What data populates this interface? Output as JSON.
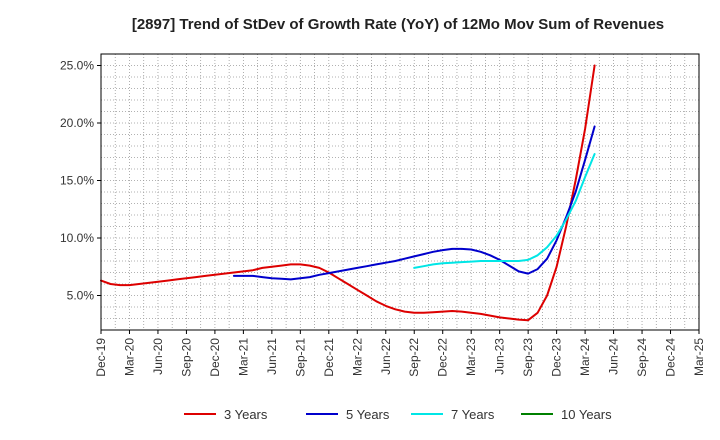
{
  "chart_data": {
    "type": "line",
    "title": "[2897]  Trend of StDev of Growth Rate (YoY) of 12Mo Mov Sum of Revenues",
    "xlabel": "",
    "ylabel": "",
    "ylim": [
      2.0,
      26.0
    ],
    "y_ticks": [
      5.0,
      10.0,
      15.0,
      20.0,
      25.0
    ],
    "y_tick_labels": [
      "5.0%",
      "10.0%",
      "15.0%",
      "20.0%",
      "25.0%"
    ],
    "x_tick_labels": [
      "Dec-19",
      "Mar-20",
      "Jun-20",
      "Sep-20",
      "Dec-20",
      "Mar-21",
      "Jun-21",
      "Sep-21",
      "Dec-21",
      "Mar-22",
      "Jun-22",
      "Sep-22",
      "Dec-22",
      "Mar-23",
      "Jun-23",
      "Sep-23",
      "Dec-23",
      "Mar-24",
      "Jun-24",
      "Sep-24",
      "Dec-24",
      "Mar-25"
    ],
    "grid": true,
    "legend_position": "bottom",
    "series": [
      {
        "name": "3 Years",
        "color": "#dd0000",
        "points": [
          [
            0,
            6.3
          ],
          [
            1,
            6.0
          ],
          [
            2,
            5.9
          ],
          [
            3,
            5.9
          ],
          [
            4,
            6.0
          ],
          [
            5,
            6.1
          ],
          [
            6,
            6.2
          ],
          [
            7,
            6.3
          ],
          [
            8,
            6.4
          ],
          [
            9,
            6.5
          ],
          [
            10,
            6.6
          ],
          [
            11,
            6.7
          ],
          [
            12,
            6.8
          ],
          [
            13,
            6.9
          ],
          [
            14,
            7.0
          ],
          [
            15,
            7.1
          ],
          [
            16,
            7.2
          ],
          [
            17,
            7.4
          ],
          [
            18,
            7.5
          ],
          [
            19,
            7.6
          ],
          [
            20,
            7.7
          ],
          [
            21,
            7.7
          ],
          [
            22,
            7.6
          ],
          [
            23,
            7.4
          ],
          [
            24,
            7.0
          ],
          [
            25,
            6.5
          ],
          [
            26,
            6.0
          ],
          [
            27,
            5.5
          ],
          [
            28,
            5.0
          ],
          [
            29,
            4.5
          ],
          [
            30,
            4.1
          ],
          [
            31,
            3.8
          ],
          [
            32,
            3.6
          ],
          [
            33,
            3.5
          ],
          [
            34,
            3.5
          ],
          [
            35,
            3.55
          ],
          [
            36,
            3.6
          ],
          [
            37,
            3.65
          ],
          [
            38,
            3.6
          ],
          [
            39,
            3.5
          ],
          [
            40,
            3.4
          ],
          [
            41,
            3.25
          ],
          [
            42,
            3.1
          ],
          [
            43,
            3.0
          ],
          [
            44,
            2.9
          ],
          [
            45,
            2.85
          ],
          [
            46,
            3.5
          ],
          [
            47,
            5.0
          ],
          [
            48,
            7.5
          ],
          [
            49,
            11.0
          ],
          [
            50,
            15.0
          ],
          [
            51,
            19.5
          ],
          [
            52,
            25.0
          ]
        ]
      },
      {
        "name": "5 Years",
        "color": "#0000cc",
        "points": [
          [
            14,
            6.7
          ],
          [
            15,
            6.7
          ],
          [
            16,
            6.7
          ],
          [
            17,
            6.6
          ],
          [
            18,
            6.5
          ],
          [
            19,
            6.45
          ],
          [
            20,
            6.4
          ],
          [
            21,
            6.5
          ],
          [
            22,
            6.6
          ],
          [
            23,
            6.8
          ],
          [
            24,
            6.95
          ],
          [
            25,
            7.1
          ],
          [
            26,
            7.25
          ],
          [
            27,
            7.4
          ],
          [
            28,
            7.55
          ],
          [
            29,
            7.7
          ],
          [
            30,
            7.85
          ],
          [
            31,
            8.0
          ],
          [
            32,
            8.2
          ],
          [
            33,
            8.4
          ],
          [
            34,
            8.6
          ],
          [
            35,
            8.8
          ],
          [
            36,
            8.95
          ],
          [
            37,
            9.05
          ],
          [
            38,
            9.05
          ],
          [
            39,
            9.0
          ],
          [
            40,
            8.8
          ],
          [
            41,
            8.5
          ],
          [
            42,
            8.1
          ],
          [
            43,
            7.6
          ],
          [
            44,
            7.1
          ],
          [
            45,
            6.9
          ],
          [
            46,
            7.3
          ],
          [
            47,
            8.2
          ],
          [
            48,
            9.8
          ],
          [
            49,
            11.8
          ],
          [
            50,
            14.0
          ],
          [
            51,
            16.8
          ],
          [
            52,
            19.7
          ]
        ]
      },
      {
        "name": "7 Years",
        "color": "#00e6e6",
        "points": [
          [
            33,
            7.4
          ],
          [
            34,
            7.55
          ],
          [
            35,
            7.7
          ],
          [
            36,
            7.8
          ],
          [
            37,
            7.85
          ],
          [
            38,
            7.9
          ],
          [
            39,
            7.95
          ],
          [
            40,
            8.0
          ],
          [
            41,
            8.0
          ],
          [
            42,
            8.0
          ],
          [
            43,
            8.0
          ],
          [
            44,
            8.0
          ],
          [
            45,
            8.1
          ],
          [
            46,
            8.5
          ],
          [
            47,
            9.2
          ],
          [
            48,
            10.2
          ],
          [
            49,
            11.6
          ],
          [
            50,
            13.2
          ],
          [
            51,
            15.3
          ],
          [
            52,
            17.3
          ]
        ]
      },
      {
        "name": "10 Years",
        "color": "#008000",
        "points": []
      }
    ]
  }
}
